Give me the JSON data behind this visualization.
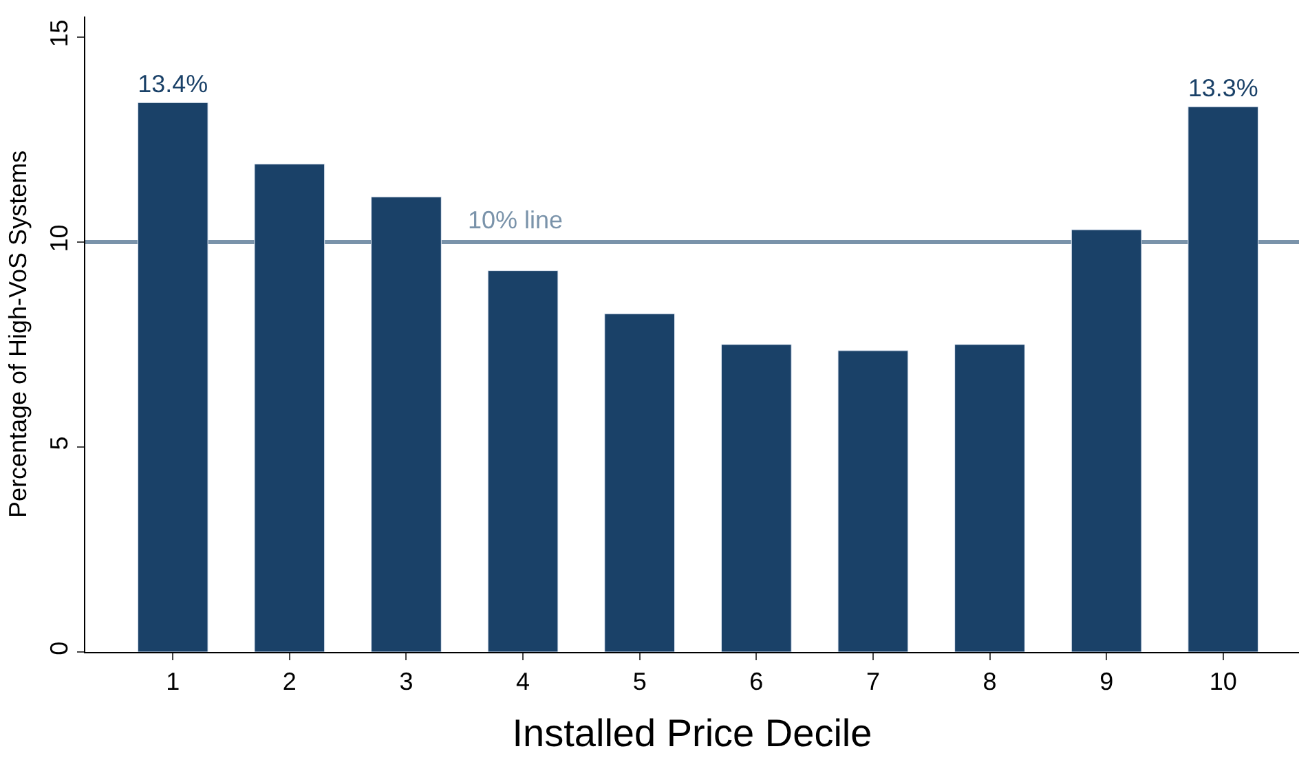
{
  "chart_data": {
    "type": "bar",
    "xlabel": "Installed Price Decile",
    "ylabel": "Percentage of High-VoS Systems",
    "categories": [
      "1",
      "2",
      "3",
      "4",
      "5",
      "6",
      "7",
      "8",
      "9",
      "10"
    ],
    "values": [
      13.4,
      11.9,
      11.1,
      9.3,
      8.25,
      7.5,
      7.35,
      7.5,
      10.3,
      13.3
    ],
    "value_labels": [
      "13.4%",
      null,
      null,
      null,
      null,
      null,
      null,
      null,
      null,
      "13.3%"
    ],
    "color": "#1a4168",
    "ylim": [
      0,
      15.5
    ],
    "yticks": [
      0,
      5,
      10,
      15
    ],
    "grid": false,
    "legend": false,
    "ref_lines": [
      {
        "axis": "y",
        "value": 10,
        "label": "10% line",
        "color": "#7a93aa",
        "line_style": "solid"
      }
    ]
  }
}
